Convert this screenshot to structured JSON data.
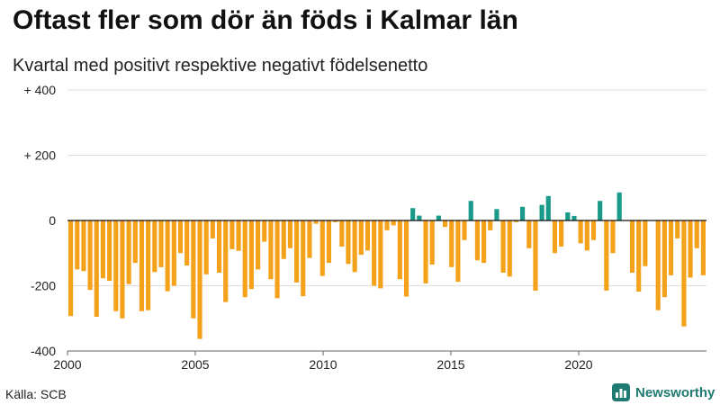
{
  "title": "Oftast fler som dör än föds i Kalmar län",
  "subtitle": "Kvartal med positivt respektive negativt födelsenetto",
  "source": "Källa: SCB",
  "brand": "Newsworthy",
  "chart_data": {
    "type": "bar",
    "title": "Oftast fler som dör än föds i Kalmar län",
    "subtitle": "Kvartal med positivt respektive negativt födelsenetto",
    "xlabel": "",
    "ylabel": "",
    "ylim": [
      -400,
      400
    ],
    "grid": true,
    "y_ticks": [
      400,
      200,
      0,
      -200,
      -400
    ],
    "y_tick_labels": [
      "+ 400",
      "+ 200",
      "0",
      "-200",
      "-400"
    ],
    "x_ticks": [
      2000,
      2005,
      2010,
      2015,
      2020
    ],
    "x_tick_labels": [
      "2000",
      "2005",
      "2010",
      "2015",
      "2020"
    ],
    "x_start": 2000,
    "x_end": 2025,
    "period": "quarter",
    "colors": {
      "positive": "#1a9a8a",
      "negative": "#f5a21b"
    },
    "values": [
      -293,
      -150,
      -155,
      -213,
      -295,
      -177,
      -185,
      -278,
      -300,
      -195,
      -130,
      -278,
      -275,
      -158,
      -143,
      -217,
      -200,
      -100,
      -138,
      -300,
      -363,
      -165,
      -55,
      -160,
      -250,
      -88,
      -93,
      -235,
      -210,
      -150,
      -65,
      -180,
      -238,
      -118,
      -85,
      -190,
      -232,
      -115,
      -10,
      -170,
      -130,
      -5,
      -80,
      -133,
      -158,
      -105,
      -92,
      -200,
      -208,
      -30,
      -15,
      -180,
      -233,
      38,
      15,
      -193,
      -135,
      15,
      -20,
      -143,
      -188,
      -60,
      60,
      -122,
      -130,
      -30,
      35,
      -160,
      -172,
      -5,
      42,
      -85,
      -215,
      48,
      75,
      -100,
      -80,
      25,
      14,
      -70,
      -92,
      -60,
      60,
      -215,
      -100,
      86,
      0,
      -160,
      -218,
      -140,
      0,
      -275,
      -235,
      -168,
      -55,
      -325,
      -175,
      -85,
      -168
    ]
  }
}
